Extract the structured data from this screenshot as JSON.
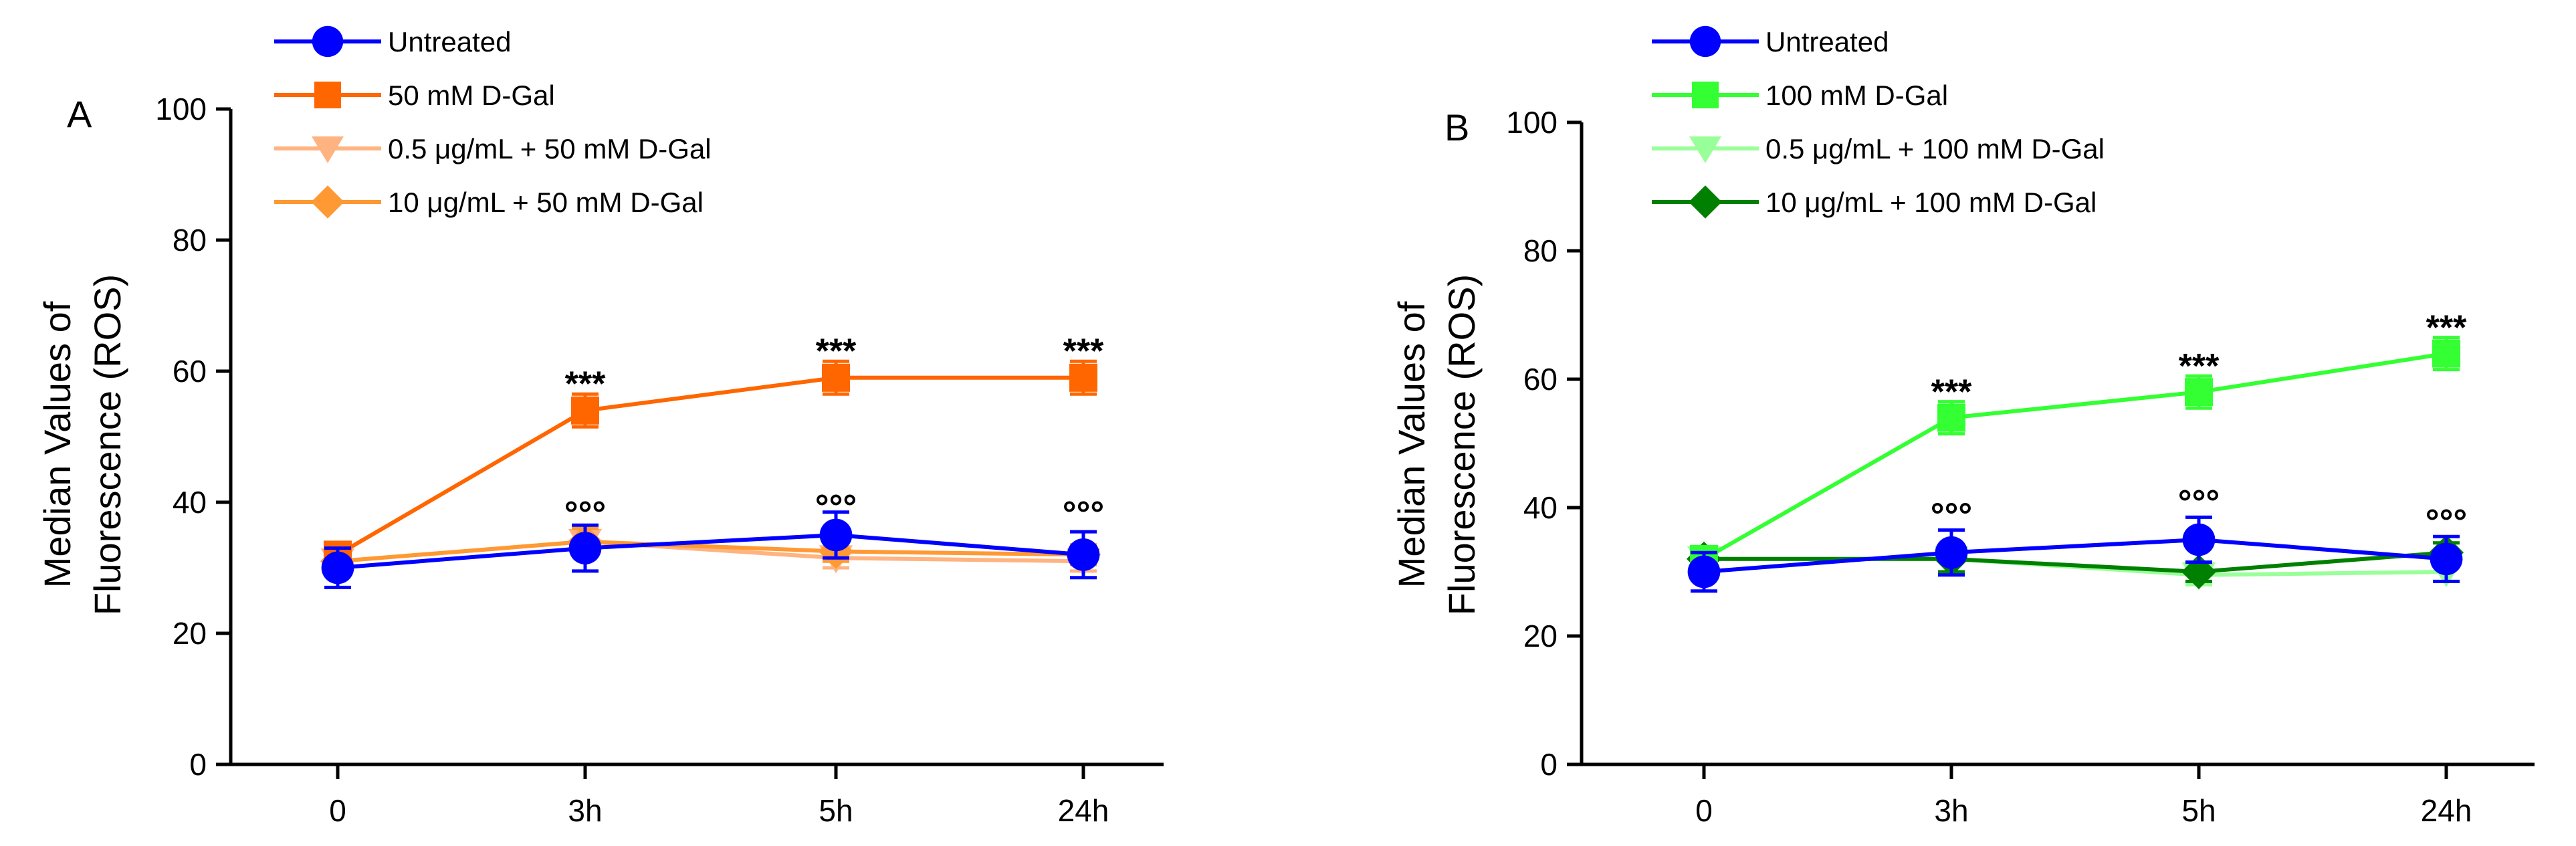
{
  "chart_data": [
    {
      "type": "line",
      "panel": "A",
      "ylabel_line1": "Median Values of",
      "ylabel_line2": "Fluorescence (ROS)",
      "xlabel": "",
      "categories": [
        "0",
        "3h",
        "5h",
        "24h"
      ],
      "ylim": [
        0,
        100
      ],
      "yticks": [
        "0",
        "20",
        "40",
        "60",
        "80",
        "100"
      ],
      "ytick_values": [
        0,
        20,
        40,
        60,
        80,
        100
      ],
      "grid": false,
      "legend_position": "top-left",
      "series": [
        {
          "name": "Untreated",
          "color": "#0000ff",
          "marker": "circle",
          "values": [
            30,
            33,
            35,
            32
          ],
          "errors": [
            3,
            3.5,
            3.5,
            3.5
          ]
        },
        {
          "name": "50 mM D-Gal",
          "color": "#ff6600",
          "marker": "square",
          "values": [
            32,
            54,
            59,
            59
          ],
          "errors": [
            1.5,
            2.5,
            2.5,
            2.5
          ]
        },
        {
          "name": "0.5 μg/mL + 50 mM D-Gal",
          "color": "#ffb380",
          "marker": "triangle-down",
          "values": [
            31,
            34,
            31.5,
            31
          ],
          "errors": [
            1.5,
            2,
            1.5,
            1.5
          ]
        },
        {
          "name": "10 μg/mL + 50 mM D-Gal",
          "color": "#ff9933",
          "marker": "diamond",
          "values": [
            31,
            34,
            32.5,
            32
          ],
          "errors": [
            1.5,
            2,
            1.5,
            1.5
          ]
        }
      ],
      "annotations": [
        {
          "text": "***",
          "category": "3h",
          "y": 54,
          "placement": "above",
          "offset": 4.5
        },
        {
          "text": "***",
          "category": "5h",
          "y": 59,
          "placement": "above",
          "offset": 4.5
        },
        {
          "text": "***",
          "category": "24h",
          "y": 59,
          "placement": "above",
          "offset": 4.5
        },
        {
          "text": "°°°",
          "category": "3h",
          "y": 36,
          "placement": "above",
          "offset": 0.5
        },
        {
          "text": "°°°",
          "category": "5h",
          "y": 37,
          "placement": "above",
          "offset": 0.5
        },
        {
          "text": "°°°",
          "category": "24h",
          "y": 36,
          "placement": "above",
          "offset": 0.5
        }
      ]
    },
    {
      "type": "line",
      "panel": "B",
      "ylabel_line1": "Median Values of",
      "ylabel_line2": "Fluorescence (ROS)",
      "xlabel": "",
      "categories": [
        "0",
        "3h",
        "5h",
        "24h"
      ],
      "ylim": [
        0,
        100
      ],
      "yticks": [
        "0",
        "20",
        "40",
        "60",
        "80",
        "100"
      ],
      "ytick_values": [
        0,
        20,
        40,
        60,
        80,
        100
      ],
      "grid": false,
      "legend_position": "top-left",
      "series": [
        {
          "name": "Untreated",
          "color": "#0000ff",
          "marker": "circle",
          "values": [
            30,
            33,
            35,
            32
          ],
          "errors": [
            3,
            3.5,
            3.5,
            3.5
          ]
        },
        {
          "name": "100 mM D-Gal",
          "color": "#33ff33",
          "marker": "square",
          "values": [
            32,
            54,
            58,
            64
          ],
          "errors": [
            1.5,
            2.5,
            2.5,
            2.5
          ]
        },
        {
          "name": "0.5 μg/mL + 100 mM D-Gal",
          "color": "#99ff99",
          "marker": "triangle-down",
          "values": [
            32,
            32,
            29.5,
            30
          ],
          "errors": [
            1.5,
            2,
            1.5,
            1.5
          ]
        },
        {
          "name": "10 μg/mL + 100 mM D-Gal",
          "color": "#008000",
          "marker": "diamond",
          "values": [
            32,
            32,
            30,
            33
          ],
          "errors": [
            1.5,
            2,
            1.5,
            1.5
          ]
        }
      ],
      "annotations": [
        {
          "text": "***",
          "category": "3h",
          "y": 54,
          "placement": "above",
          "offset": 4.5
        },
        {
          "text": "***",
          "category": "5h",
          "y": 58,
          "placement": "above",
          "offset": 4.5
        },
        {
          "text": "***",
          "category": "24h",
          "y": 64,
          "placement": "above",
          "offset": 4.5
        },
        {
          "text": "°°°",
          "category": "3h",
          "y": 36.5,
          "placement": "above",
          "offset": 0.5
        },
        {
          "text": "°°°",
          "category": "5h",
          "y": 38.5,
          "placement": "above",
          "offset": 0.5
        },
        {
          "text": "°°°",
          "category": "24h",
          "y": 35.5,
          "placement": "above",
          "offset": 0.5
        }
      ]
    }
  ]
}
